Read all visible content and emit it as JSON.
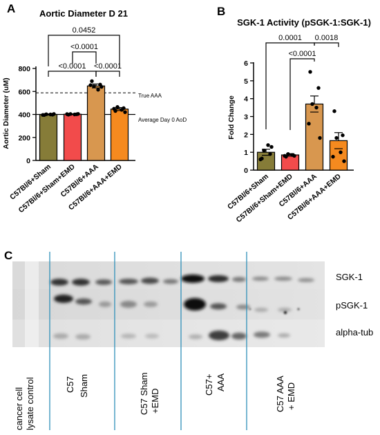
{
  "panel_letters": {
    "a": "A",
    "b": "B",
    "c": "C"
  },
  "colors": {
    "sham": "#867c38",
    "sham_emd": "#f24b4b",
    "aaa": "#d8974f",
    "aaa_emd": "#f58a1f",
    "western_divider": "#2e8fb8"
  },
  "chart_data": [
    {
      "type": "bar",
      "title": "Aortic Diameter D 21",
      "ylabel": "Aortic Diameter (uM)",
      "xlabel": "",
      "categories": [
        "C57Bl/6+Sham",
        "C57Bl/6+Sham+EMD",
        "C57Bl/6+AAA",
        "C57Bl/6+AAA+EMD"
      ],
      "values": [
        400,
        402,
        648,
        447
      ],
      "sem": [
        5,
        4,
        17,
        13
      ],
      "points": [
        [
          395,
          398,
          402,
          400,
          396,
          404
        ],
        [
          398,
          402,
          404,
          400,
          403,
          405
        ],
        [
          690,
          660,
          645,
          615,
          655,
          640
        ],
        [
          430,
          455,
          465,
          440,
          450,
          420
        ]
      ],
      "yticks": [
        0,
        200,
        400,
        600,
        800
      ],
      "ylim": [
        0,
        800
      ],
      "reference_lines": [
        {
          "label": "True AAA",
          "y": 588,
          "style": "dashed"
        },
        {
          "label": "Average Day 0 AoD",
          "y": 400,
          "style": "solid"
        }
      ],
      "comparisons": [
        {
          "from": 0,
          "to": 3,
          "p": "0.0452"
        },
        {
          "from": 1,
          "to": 2,
          "p": "<0.0001"
        },
        {
          "from": 0,
          "to": 2,
          "p": "<0.0001"
        },
        {
          "from": 2,
          "to": 3,
          "p": "<0.0001"
        }
      ]
    },
    {
      "type": "bar",
      "title": "SGK-1 Activity (pSGK-1:SGK-1)",
      "ylabel": "Fold  Change",
      "xlabel": "",
      "categories": [
        "C57Bl/6+Sham",
        "C57Bl/6+Sham+EMD",
        "C57Bl/6+AAA",
        "C57Bl/6+AAA+EMD"
      ],
      "values": [
        1.0,
        0.85,
        3.7,
        1.65
      ],
      "sem": [
        0.17,
        0.07,
        0.45,
        0.45
      ],
      "points": [
        [
          0.65,
          0.9,
          1.1,
          1.4,
          0.6,
          1.3
        ],
        [
          0.75,
          0.8,
          0.9,
          0.85,
          0.8
        ],
        [
          5.5,
          4.6,
          3.7,
          3.5,
          2.6,
          1.8
        ],
        [
          3.3,
          1.95,
          1.8,
          1.0,
          0.75,
          0.5
        ]
      ],
      "yticks": [
        0,
        1,
        2,
        3,
        4,
        5,
        6
      ],
      "ylim": [
        0,
        6
      ],
      "comparisons": [
        {
          "from": 0,
          "to": 2,
          "p": "0.0001"
        },
        {
          "from": 2,
          "to": 3,
          "p": "0.0018"
        },
        {
          "from": 1,
          "to": 2,
          "p": "<0.0001"
        }
      ]
    }
  ],
  "western_blot": {
    "band_labels": [
      "SGK-1",
      "pSGK-1",
      "alpha-tub"
    ],
    "lane_groups": [
      {
        "lines": [
          "cancer cell",
          "lysate control"
        ]
      },
      {
        "lines": [
          "C57",
          "Sham"
        ]
      },
      {
        "lines": [
          "C57 Sham",
          "+EMD"
        ]
      },
      {
        "lines": [
          "C57+",
          "AAA"
        ]
      },
      {
        "lines": [
          "C57 AAA",
          "+ EMD"
        ]
      }
    ]
  }
}
